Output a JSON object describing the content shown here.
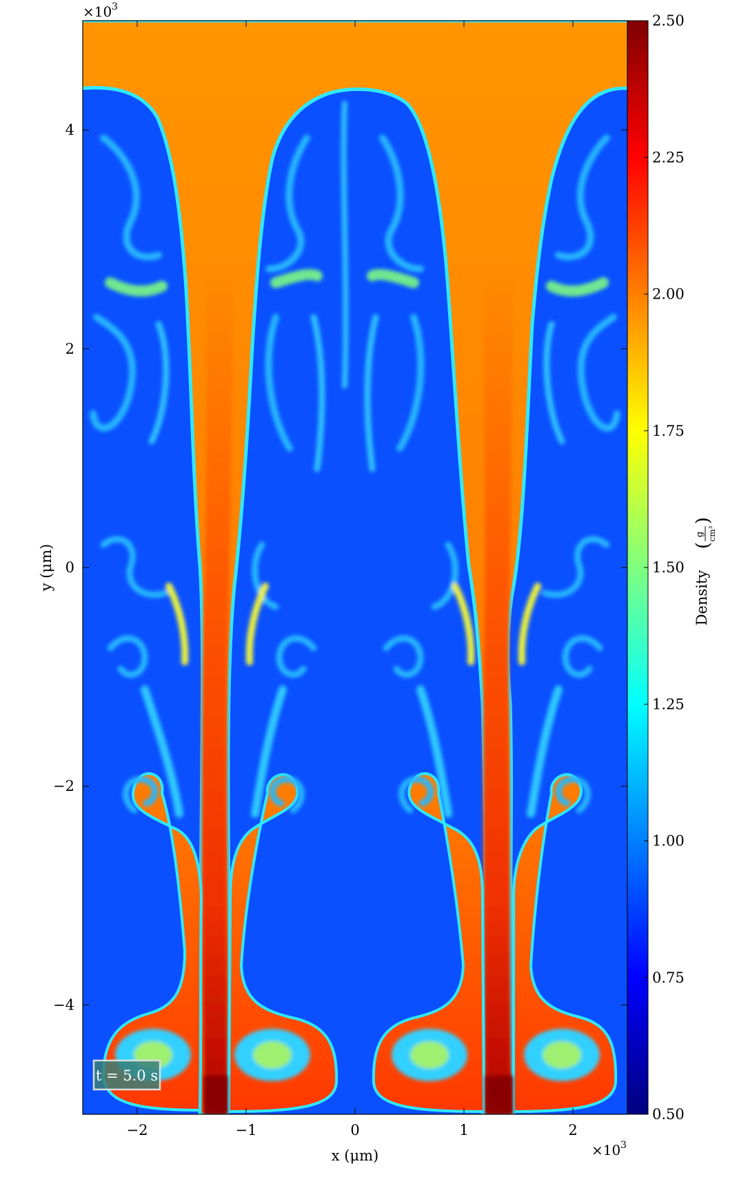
{
  "chart_data": {
    "type": "heatmap",
    "title": "",
    "xlabel": "x  (μm)",
    "ylabel": "y  (μm)",
    "x_multiplier": "×10^3",
    "y_multiplier": "×10^3",
    "xlim": [
      -2.5,
      2.5
    ],
    "ylim": [
      -5,
      5
    ],
    "x_ticks": [
      -2,
      -1,
      0,
      1,
      2
    ],
    "x_tick_labels": [
      "−2",
      "−1",
      "0",
      "1",
      "2"
    ],
    "y_ticks": [
      -4,
      -2,
      0,
      2,
      4
    ],
    "y_tick_labels": [
      "−4",
      "−2",
      "0",
      "2",
      "4"
    ],
    "colorbar": {
      "label": "Density",
      "unit_numerator": "g",
      "unit_denominator": "cm³",
      "range": [
        0.5,
        2.5
      ],
      "ticks": [
        0.5,
        0.75,
        1.0,
        1.25,
        1.5,
        1.75,
        2.0,
        2.25,
        2.5
      ],
      "tick_labels": [
        "0.50",
        "0.75",
        "1.00",
        "1.25",
        "1.50",
        "1.75",
        "2.00",
        "2.25",
        "2.50"
      ],
      "colormap": "jet"
    },
    "annotation": "t = 5.0 s",
    "field_description": "Rayleigh-Taylor mixing: heavy fluid (density ≈ 1.95) on top, light fluid (density ≈ 0.8) below; heavy spikes penetrating down near x ≈ ±1.25, light bubbles rising to y ≈ 4.4",
    "heavy_density": 1.95,
    "light_density": 0.8,
    "spike_x": [
      -1.25,
      1.25
    ],
    "bubble_top_y": 4.4,
    "grid": false
  },
  "colors": {
    "heavy_fluid": "#ff8c00",
    "light_fluid": "#0040ff",
    "spike_core": "#e82000",
    "mixing_cyan": "#20c8ff",
    "mixing_green": "#7fff7f"
  }
}
